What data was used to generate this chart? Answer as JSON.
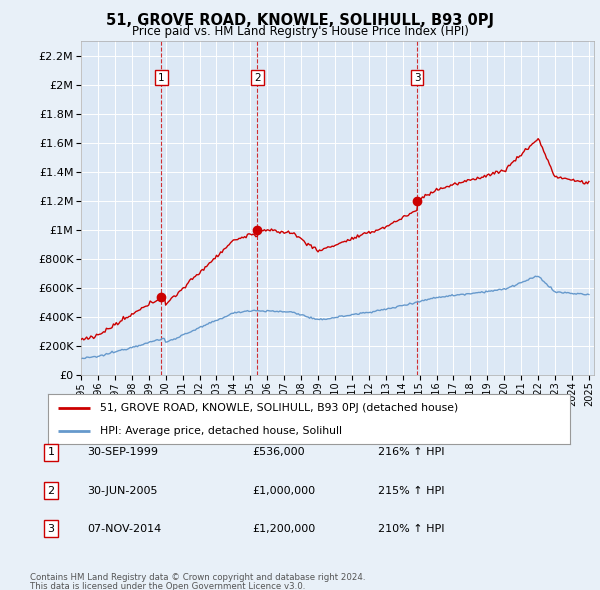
{
  "title": "51, GROVE ROAD, KNOWLE, SOLIHULL, B93 0PJ",
  "subtitle": "Price paid vs. HM Land Registry's House Price Index (HPI)",
  "bg_color": "#e8f0f8",
  "plot_bg_color": "#dce8f5",
  "legend_line1": "51, GROVE ROAD, KNOWLE, SOLIHULL, B93 0PJ (detached house)",
  "legend_line2": "HPI: Average price, detached house, Solihull",
  "sale_year_nums": [
    1999.75,
    2005.42,
    2014.85
  ],
  "sale_prices": [
    536000,
    1000000,
    1200000
  ],
  "sale_labels": [
    "1",
    "2",
    "3"
  ],
  "sale_info": [
    [
      "1",
      "30-SEP-1999",
      "£536,000",
      "216% ↑ HPI"
    ],
    [
      "2",
      "30-JUN-2005",
      "£1,000,000",
      "215% ↑ HPI"
    ],
    [
      "3",
      "07-NOV-2014",
      "£1,200,000",
      "210% ↑ HPI"
    ]
  ],
  "footer1": "Contains HM Land Registry data © Crown copyright and database right 2024.",
  "footer2": "This data is licensed under the Open Government Licence v3.0.",
  "yticks": [
    0,
    200000,
    400000,
    600000,
    800000,
    1000000,
    1200000,
    1400000,
    1600000,
    1800000,
    2000000,
    2200000
  ],
  "red_color": "#cc0000",
  "blue_color": "#6699cc",
  "xlim_start": 1995.0,
  "xlim_end": 2025.3
}
